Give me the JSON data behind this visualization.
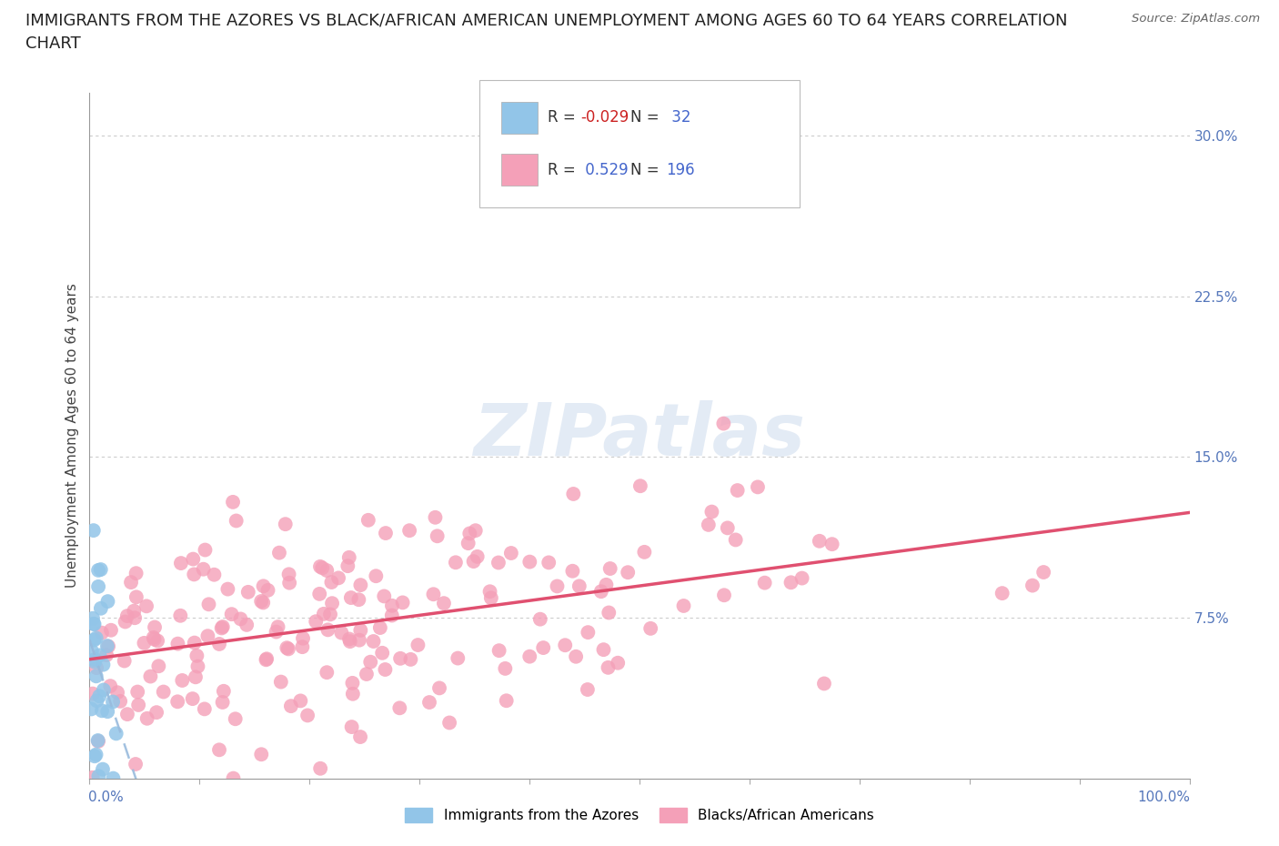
{
  "title_line1": "IMMIGRANTS FROM THE AZORES VS BLACK/AFRICAN AMERICAN UNEMPLOYMENT AMONG AGES 60 TO 64 YEARS CORRELATION",
  "title_line2": "CHART",
  "source": "Source: ZipAtlas.com",
  "ylabel": "Unemployment Among Ages 60 to 64 years",
  "xlim": [
    0.0,
    1.0
  ],
  "ylim": [
    0.0,
    0.32
  ],
  "ytick_vals": [
    0.075,
    0.15,
    0.225,
    0.3
  ],
  "ytick_labels": [
    "7.5%",
    "15.0%",
    "22.5%",
    "30.0%"
  ],
  "blue_color": "#92C5E8",
  "pink_color": "#F4A0B8",
  "blue_line_color": "#99BBDD",
  "pink_line_color": "#E05070",
  "R_blue": -0.029,
  "N_blue": 32,
  "R_pink": 0.529,
  "N_pink": 196,
  "legend_label_blue": "Immigrants from the Azores",
  "legend_label_pink": "Blacks/African Americans",
  "background_color": "#ffffff",
  "title_fontsize": 13,
  "label_fontsize": 11,
  "tick_color": "#5577BB"
}
